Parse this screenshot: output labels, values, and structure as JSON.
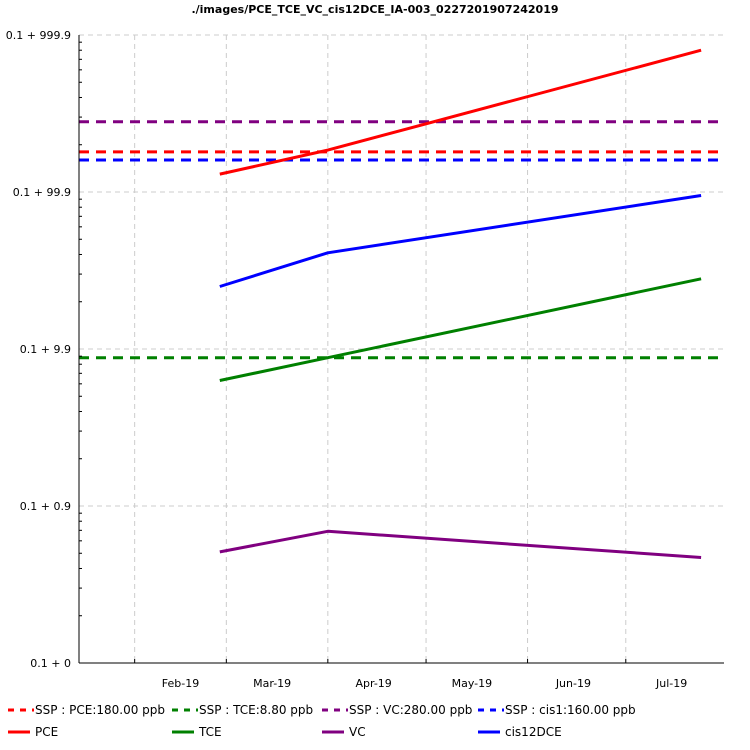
{
  "chart_data": {
    "type": "line",
    "title": "./images/PCE_TCE_VC_cis12DCE_IA-003_0227201907242019",
    "xlabel": "",
    "ylabel": "",
    "x_tick_labels": [
      "Feb-19",
      "Mar-19",
      "Apr-19",
      "May-19",
      "Jun-19",
      "Jul-19"
    ],
    "xlim": [
      "2019-01-15",
      "2019-07-31"
    ],
    "y_scale": "log",
    "ylim": [
      0.1,
      1000
    ],
    "y_ticks": [
      {
        "value": 0.1,
        "label": "0.1 + 0"
      },
      {
        "value": 1,
        "label": "0.1 + 0.9"
      },
      {
        "value": 10,
        "label": "0.1 + 9.9"
      },
      {
        "value": 100,
        "label": "0.1 + 99.9"
      },
      {
        "value": 1000,
        "label": "0.1 + 999.9"
      }
    ],
    "grid": true,
    "legend_position": "bottom",
    "thresholds": [
      {
        "name": "SSP : PCE:180.00 ppb",
        "value": 180,
        "color": "#ff0000"
      },
      {
        "name": "SSP : TCE:8.80 ppb",
        "value": 8.8,
        "color": "#008000"
      },
      {
        "name": "SSP : VC:280.00 ppb",
        "value": 280,
        "color": "#800080"
      },
      {
        "name": "SSP : cis1:160.00 ppb",
        "value": 160,
        "color": "#0000ff"
      }
    ],
    "series": [
      {
        "name": "PCE",
        "color": "#ff0000",
        "x": [
          "2019-02-27",
          "2019-04-01",
          "2019-07-24"
        ],
        "values": [
          130,
          185,
          800
        ]
      },
      {
        "name": "TCE",
        "color": "#008000",
        "x": [
          "2019-02-27",
          "2019-04-01",
          "2019-07-24"
        ],
        "values": [
          6.3,
          8.8,
          28
        ]
      },
      {
        "name": "VC",
        "color": "#800080",
        "x": [
          "2019-02-27",
          "2019-04-01",
          "2019-07-24"
        ],
        "values": [
          0.51,
          0.69,
          0.47
        ]
      },
      {
        "name": "cis12DCE",
        "color": "#0000ff",
        "x": [
          "2019-02-27",
          "2019-04-01",
          "2019-07-24"
        ],
        "values": [
          25,
          41,
          95
        ]
      }
    ]
  }
}
